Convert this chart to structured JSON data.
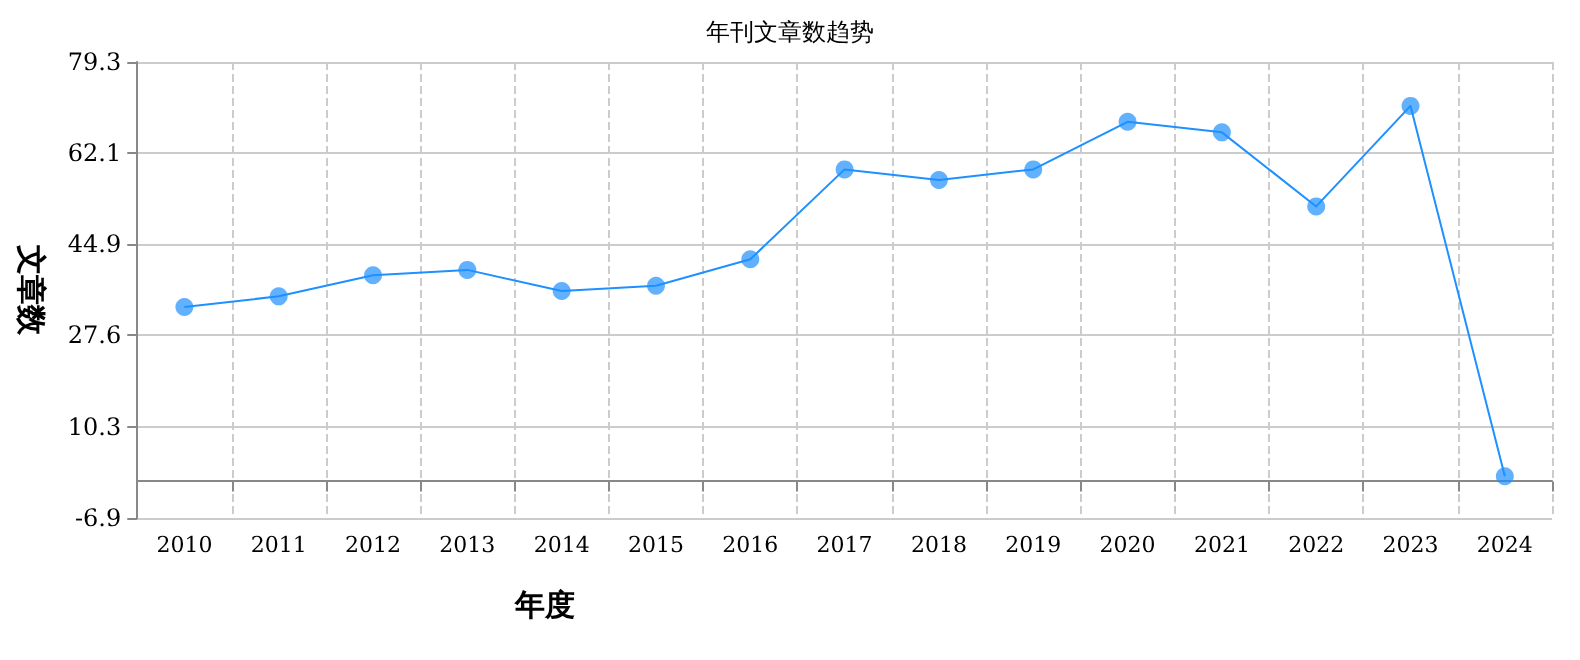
{
  "chart_data": {
    "type": "line",
    "title": "年刊文章数趋势",
    "xlabel": "年度",
    "ylabel": "文章数",
    "categories": [
      "2010",
      "2011",
      "2012",
      "2013",
      "2014",
      "2015",
      "2016",
      "2017",
      "2018",
      "2019",
      "2020",
      "2021",
      "2022",
      "2023",
      "2024"
    ],
    "series": [
      {
        "color": "#1e90ff",
        "values": [
          33,
          35,
          39,
          40,
          36,
          37,
          42,
          59,
          57,
          59,
          68,
          66,
          52,
          71,
          1
        ]
      }
    ],
    "ylim": [
      -6.9,
      79.3
    ],
    "yticks": [
      -6.9,
      10.3,
      27.6,
      44.9,
      62.1,
      79.3
    ],
    "grid": true,
    "marker": "circle",
    "line_style": "solid"
  }
}
